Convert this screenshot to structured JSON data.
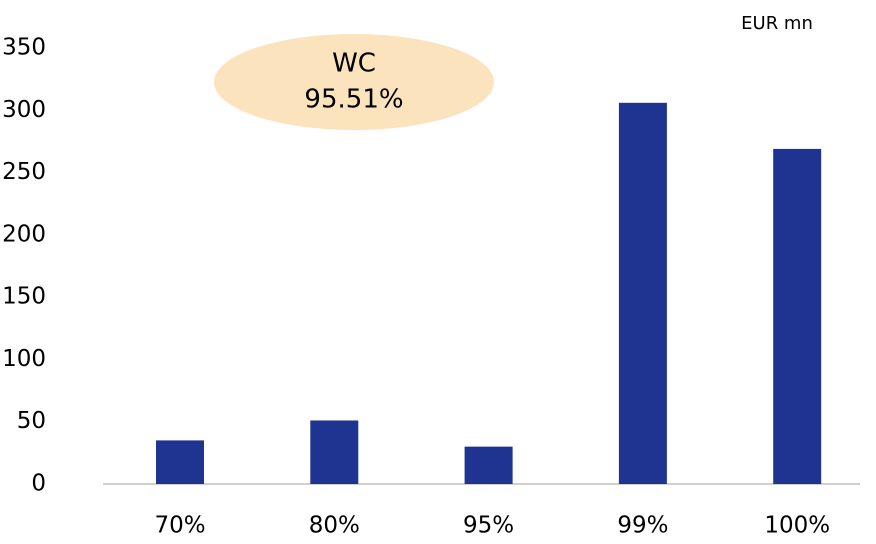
{
  "chart_data": {
    "type": "bar",
    "unit_label": "EUR mn",
    "annotation": [
      "WC",
      "95.51%"
    ],
    "categories": [
      "70%",
      "80%",
      "95%",
      "99%",
      "100%"
    ],
    "values": [
      35,
      51,
      30,
      306,
      269
    ],
    "color": "#1f3491",
    "ylim": [
      0,
      350
    ],
    "yticks": [
      0,
      50,
      100,
      150,
      200,
      250,
      300,
      350
    ],
    "grid": false
  }
}
